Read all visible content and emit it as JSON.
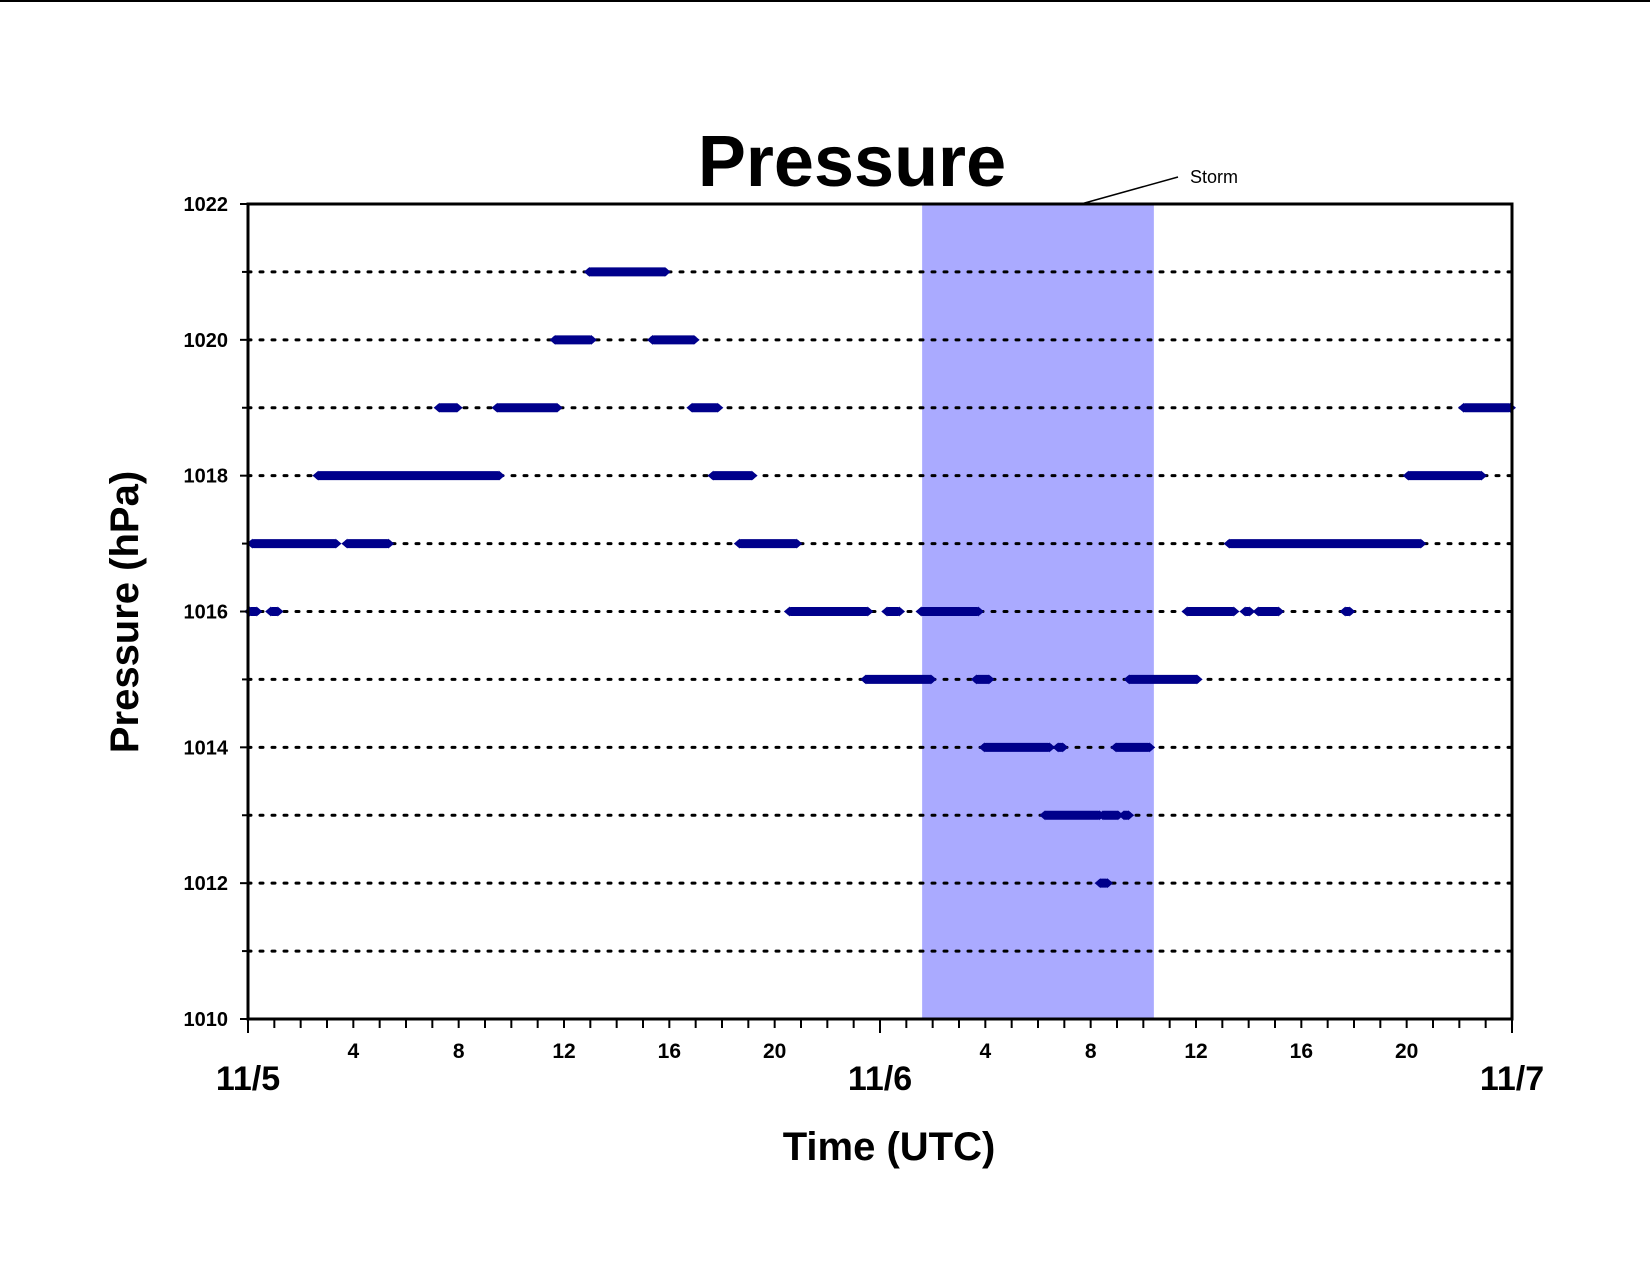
{
  "chart_data": {
    "type": "scatter",
    "title": "Pressure",
    "xlabel": "Time (UTC)",
    "ylabel": "Pressure (hPa)",
    "ylim": [
      1010,
      1022
    ],
    "y_ticks": [
      "1010",
      "1012",
      "1014",
      "1016",
      "1018",
      "1020",
      "1022"
    ],
    "y_gridlines": "dotted, every 1 hPa",
    "x_range_hours": [
      0,
      48
    ],
    "x_hour_tick_labels": [
      {
        "hour": 4,
        "label": "4"
      },
      {
        "hour": 8,
        "label": "8"
      },
      {
        "hour": 12,
        "label": "12"
      },
      {
        "hour": 16,
        "label": "16"
      },
      {
        "hour": 20,
        "label": "20"
      },
      {
        "hour": 28,
        "label": "4"
      },
      {
        "hour": 32,
        "label": "8"
      },
      {
        "hour": 36,
        "label": "12"
      },
      {
        "hour": 40,
        "label": "16"
      },
      {
        "hour": 44,
        "label": "20"
      }
    ],
    "x_day_labels": [
      {
        "hour": 0,
        "label": "11/5"
      },
      {
        "hour": 24,
        "label": "11/6"
      },
      {
        "hour": 48,
        "label": "11/7"
      }
    ],
    "shaded_region": {
      "label": "Storm",
      "from_hour": 25.6,
      "to_hour": 34.4,
      "color": "#aaaaff"
    },
    "marker_color": "#00008b",
    "segments": [
      {
        "pressure": 1016,
        "from_hour": 0.0,
        "to_hour": 0.4
      },
      {
        "pressure": 1016,
        "from_hour": 0.8,
        "to_hour": 1.2
      },
      {
        "pressure": 1017,
        "from_hour": 0.1,
        "to_hour": 3.4
      },
      {
        "pressure": 1017,
        "from_hour": 3.7,
        "to_hour": 5.4
      },
      {
        "pressure": 1018,
        "from_hour": 2.6,
        "to_hour": 9.6
      },
      {
        "pressure": 1019,
        "from_hour": 7.2,
        "to_hour": 8.0
      },
      {
        "pressure": 1019,
        "from_hour": 9.4,
        "to_hour": 11.8
      },
      {
        "pressure": 1020,
        "from_hour": 11.6,
        "to_hour": 13.1
      },
      {
        "pressure": 1021,
        "from_hour": 12.9,
        "to_hour": 15.9
      },
      {
        "pressure": 1020,
        "from_hour": 15.3,
        "to_hour": 17.0
      },
      {
        "pressure": 1019,
        "from_hour": 16.8,
        "to_hour": 17.9
      },
      {
        "pressure": 1018,
        "from_hour": 17.6,
        "to_hour": 19.2
      },
      {
        "pressure": 1017,
        "from_hour": 18.6,
        "to_hour": 20.9
      },
      {
        "pressure": 1016,
        "from_hour": 20.5,
        "to_hour": 23.6
      },
      {
        "pressure": 1016,
        "from_hour": 24.2,
        "to_hour": 24.8
      },
      {
        "pressure": 1015,
        "from_hour": 23.4,
        "to_hour": 26.0
      },
      {
        "pressure": 1016,
        "from_hour": 25.5,
        "to_hour": 27.8
      },
      {
        "pressure": 1015,
        "from_hour": 27.6,
        "to_hour": 28.2
      },
      {
        "pressure": 1014,
        "from_hour": 27.9,
        "to_hour": 30.5
      },
      {
        "pressure": 1014,
        "from_hour": 30.7,
        "to_hour": 31.0
      },
      {
        "pressure": 1013,
        "from_hour": 30.2,
        "to_hour": 32.4
      },
      {
        "pressure": 1013,
        "from_hour": 32.4,
        "to_hour": 33.1
      },
      {
        "pressure": 1013,
        "from_hour": 33.2,
        "to_hour": 33.5
      },
      {
        "pressure": 1012,
        "from_hour": 32.3,
        "to_hour": 32.7
      },
      {
        "pressure": 1014,
        "from_hour": 32.9,
        "to_hour": 34.3
      },
      {
        "pressure": 1015,
        "from_hour": 33.4,
        "to_hour": 36.1
      },
      {
        "pressure": 1016,
        "from_hour": 35.6,
        "to_hour": 37.5
      },
      {
        "pressure": 1016,
        "from_hour": 38.3,
        "to_hour": 39.2
      },
      {
        "pressure": 1016,
        "from_hour": 37.8,
        "to_hour": 38.1
      },
      {
        "pressure": 1016,
        "from_hour": 41.6,
        "to_hour": 41.9
      },
      {
        "pressure": 1017,
        "from_hour": 37.2,
        "to_hour": 44.6
      },
      {
        "pressure": 1018,
        "from_hour": 44.0,
        "to_hour": 46.9
      },
      {
        "pressure": 1019,
        "from_hour": 46.1,
        "to_hour": 48.0
      }
    ]
  }
}
